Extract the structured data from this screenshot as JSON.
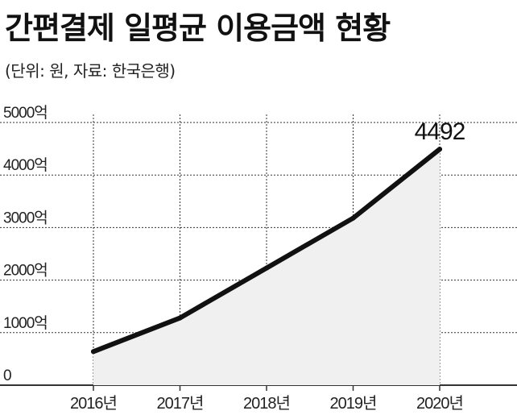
{
  "header": {
    "title": "간편결제 일평균 이용금액 현황",
    "subtitle": "(단위: 원, 자료: 한국은행)"
  },
  "chart_data": {
    "type": "area",
    "title": "간편결제 일평균 이용금액 현황",
    "subtitle": "(단위: 원, 자료: 한국은행)",
    "categories": [
      "2016년",
      "2017년",
      "2018년",
      "2019년",
      "2020년"
    ],
    "values": [
      640,
      1280,
      2230,
      3180,
      4492
    ],
    "y_ticks": [
      {
        "value": 0,
        "label": "0"
      },
      {
        "value": 1000,
        "label": "1000억"
      },
      {
        "value": 2000,
        "label": "2000억"
      },
      {
        "value": 3000,
        "label": "3000억"
      },
      {
        "value": 4000,
        "label": "4000억"
      },
      {
        "value": 5000,
        "label": "5000억"
      }
    ],
    "ylim": [
      0,
      5000
    ],
    "data_labels": [
      {
        "index": 4,
        "text": "4492"
      }
    ],
    "grid": true,
    "line_color": "#111111",
    "fill_color": "#f0f0f0",
    "grid_color": "#333333"
  }
}
